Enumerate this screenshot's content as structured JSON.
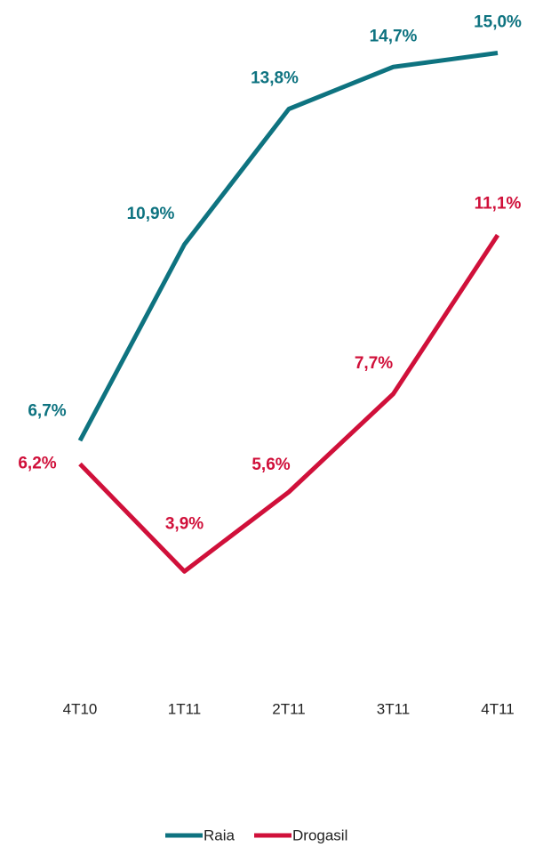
{
  "chart_data": {
    "type": "line",
    "categories": [
      "4T10",
      "1T11",
      "2T11",
      "3T11",
      "4T11"
    ],
    "series": [
      {
        "name": "Raia",
        "color": "#0e7380",
        "values": [
          6.7,
          10.9,
          13.8,
          14.7,
          15.0
        ],
        "value_labels": [
          "6,7%",
          "10,9%",
          "13,8%",
          "14,7%",
          "15,0%"
        ]
      },
      {
        "name": "Drogasil",
        "color": "#d0103a",
        "values": [
          6.2,
          3.9,
          5.6,
          7.7,
          11.1
        ],
        "value_labels": [
          "6,2%",
          "3,9%",
          "5,6%",
          "7,7%",
          "11,1%"
        ]
      }
    ],
    "ylim": [
      0,
      16
    ],
    "legend": "bottom"
  }
}
